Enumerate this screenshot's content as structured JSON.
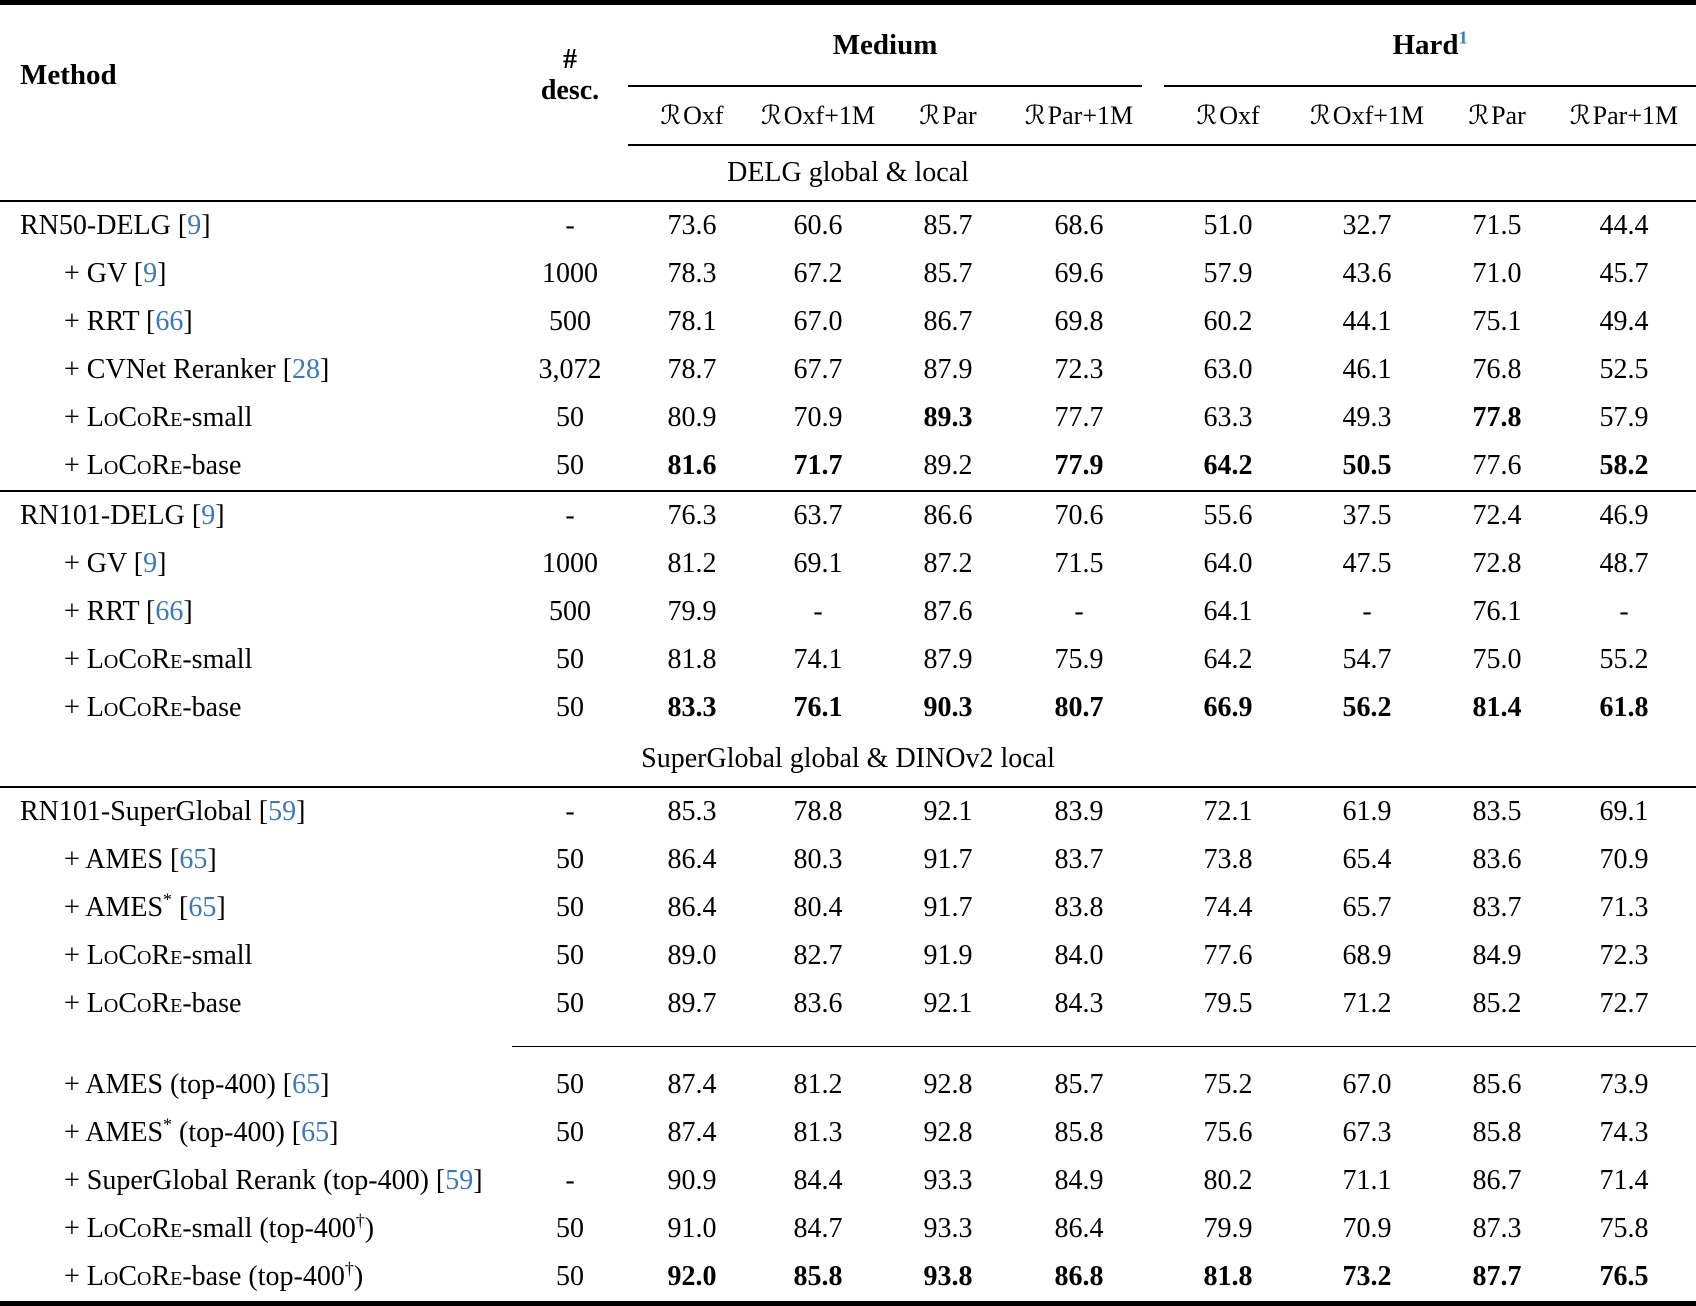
{
  "colors": {
    "citation_blue": "#3c78b9",
    "text": "#000000",
    "background": "#ffffff"
  },
  "header": {
    "method_label": "Method",
    "desc_label_lines": [
      "#",
      "desc."
    ],
    "groups": [
      {
        "label": "Medium",
        "footnote": ""
      },
      {
        "label": "Hard",
        "footnote": "1"
      }
    ],
    "subcolumns": [
      "ℛOxf",
      "ℛOxf+1M",
      "ℛPar",
      "ℛPar+1M"
    ]
  },
  "sections": [
    {
      "title": "DELG global & local",
      "blocks": [
        {
          "separator": "none",
          "rows": [
            {
              "method": "RN50-DELG",
              "cite": "9",
              "indent": false,
              "desc": "-",
              "cells": [
                "73.6",
                "60.6",
                "85.7",
                "68.6",
                "51.0",
                "32.7",
                "71.5",
                "44.4"
              ]
            },
            {
              "method": "+ GV",
              "cite": "9",
              "indent": true,
              "desc": "1000",
              "cells": [
                "78.3",
                "67.2",
                "85.7",
                "69.6",
                "57.9",
                "43.6",
                "71.0",
                "45.7"
              ]
            },
            {
              "method": "+ RRT",
              "cite": "66",
              "indent": true,
              "desc": "500",
              "cells": [
                "78.1",
                "67.0",
                "86.7",
                "69.8",
                "60.2",
                "44.1",
                "75.1",
                "49.4"
              ]
            },
            {
              "method": "+ CVNet Reranker",
              "cite": "28",
              "indent": true,
              "desc": "3,072",
              "cells": [
                "78.7",
                "67.7",
                "87.9",
                "72.3",
                "63.0",
                "46.1",
                "76.8",
                "52.5"
              ]
            },
            {
              "method": "+ LoCoRe-small",
              "indent": true,
              "desc": "50",
              "cells": [
                "80.9",
                "70.9",
                {
                  "v": "89.3",
                  "b": 1
                },
                "77.7",
                "63.3",
                "49.3",
                {
                  "v": "77.8",
                  "b": 1
                },
                "57.9"
              ]
            },
            {
              "method": "+ LoCoRe-base",
              "indent": true,
              "desc": "50",
              "cells": [
                {
                  "v": "81.6",
                  "b": 1
                },
                {
                  "v": "71.7",
                  "b": 1
                },
                "89.2",
                {
                  "v": "77.9",
                  "b": 1
                },
                {
                  "v": "64.2",
                  "b": 1
                },
                {
                  "v": "50.5",
                  "b": 1
                },
                "77.6",
                {
                  "v": "58.2",
                  "b": 1
                }
              ]
            }
          ]
        },
        {
          "separator": "full-rule",
          "rows": [
            {
              "method": "RN101-DELG",
              "cite": "9",
              "indent": false,
              "desc": "-",
              "cells": [
                "76.3",
                "63.7",
                "86.6",
                "70.6",
                "55.6",
                "37.5",
                "72.4",
                "46.9"
              ]
            },
            {
              "method": "+ GV",
              "cite": "9",
              "indent": true,
              "desc": "1000",
              "cells": [
                "81.2",
                "69.1",
                "87.2",
                "71.5",
                "64.0",
                "47.5",
                "72.8",
                "48.7"
              ]
            },
            {
              "method": "+ RRT",
              "cite": "66",
              "indent": true,
              "desc": "500",
              "cells": [
                "79.9",
                "-",
                "87.6",
                "-",
                "64.1",
                "-",
                "76.1",
                "-"
              ]
            },
            {
              "method": "+ LoCoRe-small",
              "indent": true,
              "desc": "50",
              "cells": [
                "81.8",
                "74.1",
                "87.9",
                "75.9",
                "64.2",
                "54.7",
                "75.0",
                "55.2"
              ]
            },
            {
              "method": "+ LoCoRe-base",
              "indent": true,
              "desc": "50",
              "cells": [
                {
                  "v": "83.3",
                  "b": 1
                },
                {
                  "v": "76.1",
                  "b": 1
                },
                {
                  "v": "90.3",
                  "b": 1
                },
                {
                  "v": "80.7",
                  "b": 1
                },
                {
                  "v": "66.9",
                  "b": 1
                },
                {
                  "v": "56.2",
                  "b": 1
                },
                {
                  "v": "81.4",
                  "b": 1
                },
                {
                  "v": "61.8",
                  "b": 1
                }
              ]
            }
          ]
        }
      ]
    },
    {
      "title": "SuperGlobal global & DINOv2 local",
      "blocks": [
        {
          "separator": "none",
          "rows": [
            {
              "method": "RN101-SuperGlobal",
              "cite": "59",
              "indent": false,
              "desc": "-",
              "cells": [
                "85.3",
                "78.8",
                "92.1",
                "83.9",
                "72.1",
                "61.9",
                "83.5",
                "69.1"
              ]
            },
            {
              "method": "+ AMES",
              "cite": "65",
              "indent": true,
              "desc": "50",
              "cells": [
                "86.4",
                "80.3",
                "91.7",
                "83.7",
                "73.8",
                "65.4",
                "83.6",
                "70.9"
              ]
            },
            {
              "method": "+ AMES*",
              "cite": "65",
              "indent": true,
              "desc": "50",
              "cells": [
                "86.4",
                "80.4",
                "91.7",
                "83.8",
                "74.4",
                "65.7",
                "83.7",
                "71.3"
              ]
            },
            {
              "method": "+ LoCoRe-small",
              "indent": true,
              "desc": "50",
              "cells": [
                "89.0",
                "82.7",
                "91.9",
                "84.0",
                "77.6",
                "68.9",
                "84.9",
                "72.3"
              ]
            },
            {
              "method": "+ LoCoRe-base",
              "indent": true,
              "desc": "50",
              "cells": [
                "89.7",
                "83.6",
                "92.1",
                "84.3",
                "79.5",
                "71.2",
                "85.2",
                "72.7"
              ]
            }
          ]
        },
        {
          "separator": "partial-rule",
          "rows": [
            {
              "method": "+ AMES (top-400)",
              "cite": "65",
              "indent": true,
              "desc": "50",
              "cells": [
                "87.4",
                "81.2",
                "92.8",
                "85.7",
                "75.2",
                "67.0",
                "85.6",
                "73.9"
              ]
            },
            {
              "method": "+ AMES* (top-400)",
              "cite": "65",
              "indent": true,
              "desc": "50",
              "cells": [
                "87.4",
                "81.3",
                "92.8",
                "85.8",
                "75.6",
                "67.3",
                "85.8",
                "74.3"
              ]
            },
            {
              "method": "+ SuperGlobal Rerank (top-400)",
              "cite": "59",
              "indent": true,
              "desc": "-",
              "cells": [
                "90.9",
                "84.4",
                "93.3",
                "84.9",
                "80.2",
                "71.1",
                "86.7",
                "71.4"
              ]
            },
            {
              "method": "+ LoCoRe-small (top-400†)",
              "indent": true,
              "desc": "50",
              "cells": [
                "91.0",
                "84.7",
                "93.3",
                "86.4",
                "79.9",
                "70.9",
                "87.3",
                "75.8"
              ]
            },
            {
              "method": "+ LoCoRe-base (top-400†)",
              "indent": true,
              "desc": "50",
              "cells": [
                {
                  "v": "92.0",
                  "b": 1
                },
                {
                  "v": "85.8",
                  "b": 1
                },
                {
                  "v": "93.8",
                  "b": 1
                },
                {
                  "v": "86.8",
                  "b": 1
                },
                {
                  "v": "81.8",
                  "b": 1
                },
                {
                  "v": "73.2",
                  "b": 1
                },
                {
                  "v": "87.7",
                  "b": 1
                },
                {
                  "v": "76.5",
                  "b": 1
                }
              ]
            }
          ]
        }
      ]
    }
  ]
}
